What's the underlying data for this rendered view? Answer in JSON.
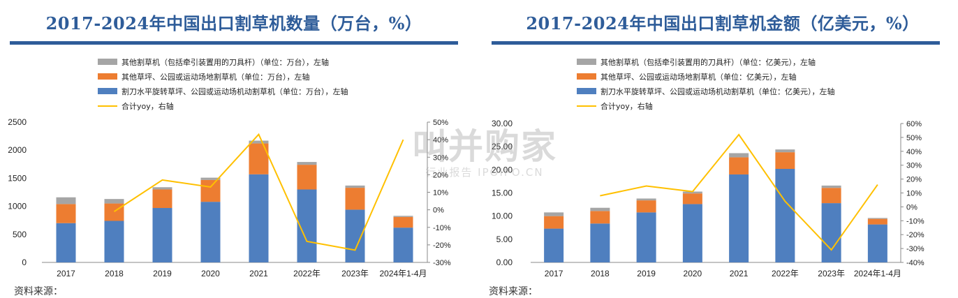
{
  "watermark": {
    "main": "叫并购家",
    "sub": "行业报告 IPOIPO.CN"
  },
  "colors": {
    "other": "#a5a5a5",
    "lawn": "#ed7d31",
    "rotary": "#4f7fbf",
    "yoy": "#ffc000",
    "title": "#2e5c99"
  },
  "chart_data": [
    {
      "type": "bar",
      "title": "2017-2024年中国出口割草机数量（万台，%）",
      "categories": [
        "2017",
        "2018",
        "2019",
        "2020",
        "2021",
        "2022年",
        "2023年",
        "2024年1-4月"
      ],
      "stacked": true,
      "y_left": {
        "lim": [
          0,
          2500
        ],
        "ticks": [
          "0",
          "500",
          "1000",
          "1500",
          "2000",
          "2500"
        ]
      },
      "y_right": {
        "lim": [
          -30,
          50
        ],
        "ticks": [
          "-30%",
          "-20%",
          "-10%",
          "0%",
          "10%",
          "20%",
          "30%",
          "40%",
          "50%"
        ]
      },
      "series": [
        {
          "name": "割刀水平旋转草坪、公园或运动场机动割草机（单位：万台），左轴",
          "key": "rotary",
          "values": [
            700,
            740,
            970,
            1080,
            1570,
            1300,
            940,
            620
          ]
        },
        {
          "name": "其他草坪、公园或运动场地割草机（单位：万台），左轴",
          "key": "lawn",
          "values": [
            340,
            310,
            330,
            390,
            550,
            440,
            390,
            190
          ]
        },
        {
          "name": "其他割草机（包括牵引装置用的刀具杆）（单位：万台），左轴",
          "key": "other",
          "values": [
            120,
            80,
            40,
            40,
            50,
            50,
            40,
            20
          ]
        },
        {
          "name": "合计yoy，右轴",
          "key": "yoy",
          "type": "line",
          "axis": "right",
          "values": [
            null,
            -1,
            17,
            13,
            43,
            -18,
            -23,
            40
          ]
        }
      ],
      "legend_order": [
        "other",
        "lawn",
        "rotary",
        "yoy"
      ]
    },
    {
      "type": "bar",
      "title": "2017-2024年中国出口割草机金额（亿美元，%）",
      "categories": [
        "2017",
        "2018",
        "2019",
        "2020",
        "2021",
        "2022年",
        "2023年",
        "2024年1-4月"
      ],
      "stacked": true,
      "y_left": {
        "lim": [
          0,
          30
        ],
        "ticks": [
          "0.00",
          "5.00",
          "10.00",
          "15.00",
          "20.00",
          "25.00",
          "30.00"
        ]
      },
      "y_right": {
        "lim": [
          -40,
          60
        ],
        "ticks": [
          "-40%",
          "-30%",
          "-20%",
          "-10%",
          "0%",
          "10%",
          "20%",
          "30%",
          "40%",
          "50%",
          "60%"
        ]
      },
      "series": [
        {
          "name": "割刀水平旋转草坪、公园或运动场机动割草机（单位：亿美元），左轴",
          "key": "rotary",
          "values": [
            7.3,
            8.4,
            10.8,
            12.6,
            19.0,
            20.2,
            12.8,
            8.2
          ]
        },
        {
          "name": "其他草坪、公园或运动场地割草机（单位：亿美元），左轴",
          "key": "lawn",
          "values": [
            2.7,
            2.7,
            2.6,
            2.3,
            3.7,
            3.6,
            3.3,
            1.2
          ]
        },
        {
          "name": "其他割草机（包括牵引装置用的刀具杆）（单位：亿美元），左轴",
          "key": "other",
          "values": [
            0.8,
            0.7,
            0.4,
            0.4,
            0.9,
            0.6,
            0.5,
            0.2
          ]
        },
        {
          "name": "合计yoy，右轴",
          "key": "yoy",
          "type": "line",
          "axis": "right",
          "values": [
            null,
            8,
            15,
            11,
            52,
            4,
            -31,
            16
          ]
        }
      ],
      "legend_order": [
        "other",
        "lawn",
        "rotary",
        "yoy"
      ]
    }
  ],
  "footer": {
    "left": "资料来源：",
    "right": "资料来源："
  }
}
